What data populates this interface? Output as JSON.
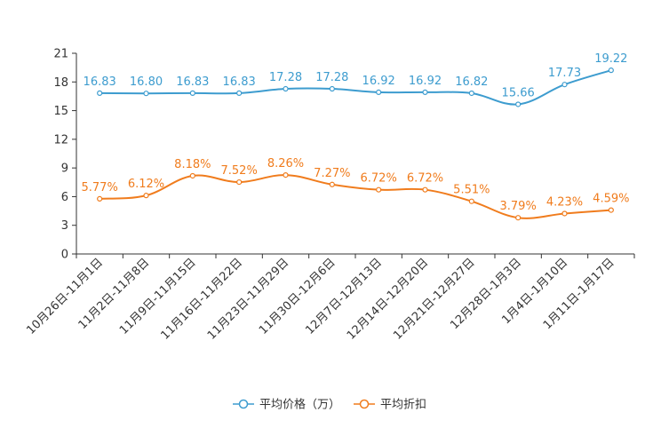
{
  "chart_data": {
    "type": "line",
    "title": "",
    "xlabel": "",
    "ylabel": "",
    "ylim": [
      0,
      21
    ],
    "yticks": [
      0,
      3,
      6,
      9,
      12,
      15,
      18,
      21
    ],
    "categories": [
      "10月26日-11月1日",
      "11月2日-11月8日",
      "11月9日-11月15日",
      "11月16日-11月22日",
      "11月23日-11月29日",
      "11月30日-12月6日",
      "12月7日-12月13日",
      "12月14日-12月20日",
      "12月21日-12月27日",
      "12月28日-1月3日",
      "1月4日-1月10日",
      "1月11日-1月17日"
    ],
    "series": [
      {
        "name": "平均价格（万）",
        "color": "#3d9ccf",
        "values": [
          16.83,
          16.8,
          16.83,
          16.83,
          17.28,
          17.28,
          16.92,
          16.92,
          16.82,
          15.66,
          17.73,
          19.22
        ],
        "labels": [
          "16.83",
          "16.80",
          "16.83",
          "16.83",
          "17.28",
          "17.28",
          "16.92",
          "16.92",
          "16.82",
          "15.66",
          "17.73",
          "19.22"
        ]
      },
      {
        "name": "平均折扣",
        "color": "#f07c1d",
        "values": [
          5.77,
          6.12,
          8.18,
          7.52,
          8.26,
          7.27,
          6.72,
          6.72,
          5.51,
          3.79,
          4.23,
          4.59
        ],
        "labels": [
          "5.77%",
          "6.12%",
          "8.18%",
          "7.52%",
          "8.26%",
          "7.27%",
          "6.72%",
          "6.72%",
          "5.51%",
          "3.79%",
          "4.23%",
          "4.59%"
        ]
      }
    ],
    "legend": "bottom-center",
    "grid": false
  }
}
